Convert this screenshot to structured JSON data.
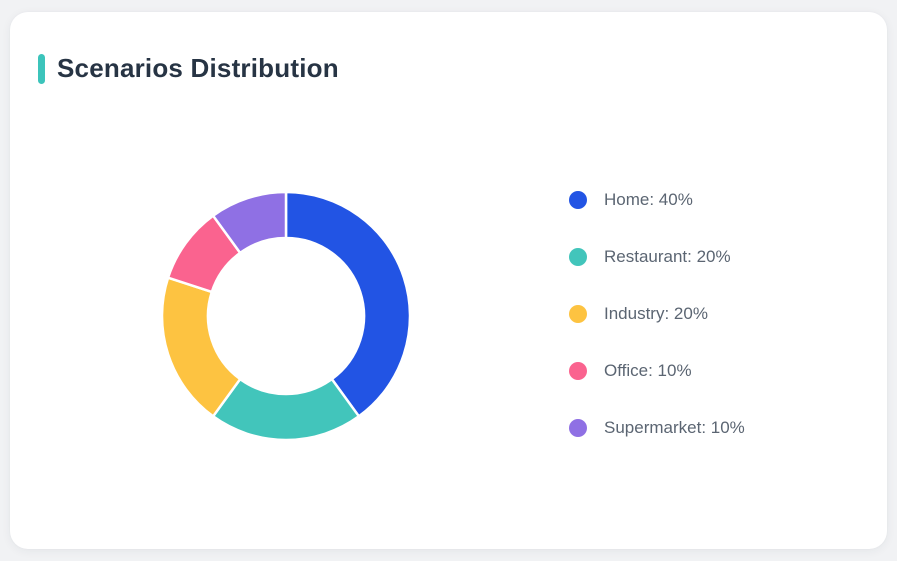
{
  "card": {
    "title": "Scenarios Distribution",
    "accent_color": "#3cc4bb"
  },
  "chart_data": {
    "type": "pie",
    "subtype": "donut",
    "title": "Scenarios Distribution",
    "categories": [
      "Home",
      "Restaurant",
      "Industry",
      "Office",
      "Supermarket"
    ],
    "values": [
      40,
      20,
      20,
      10,
      10
    ],
    "unit": "%",
    "colors": [
      "#2254e4",
      "#42c5bb",
      "#fdc341",
      "#fa638f",
      "#8f70e4"
    ],
    "legend_labels": [
      "Home: 40%",
      "Restaurant: 20%",
      "Industry: 20%",
      "Office: 10%",
      "Supermarket: 10%"
    ],
    "legend_position": "right",
    "start_angle_deg": 0,
    "direction": "clockwise",
    "outer_radius_px": 124,
    "inner_radius_px": 78,
    "separator_color": "#ffffff"
  }
}
